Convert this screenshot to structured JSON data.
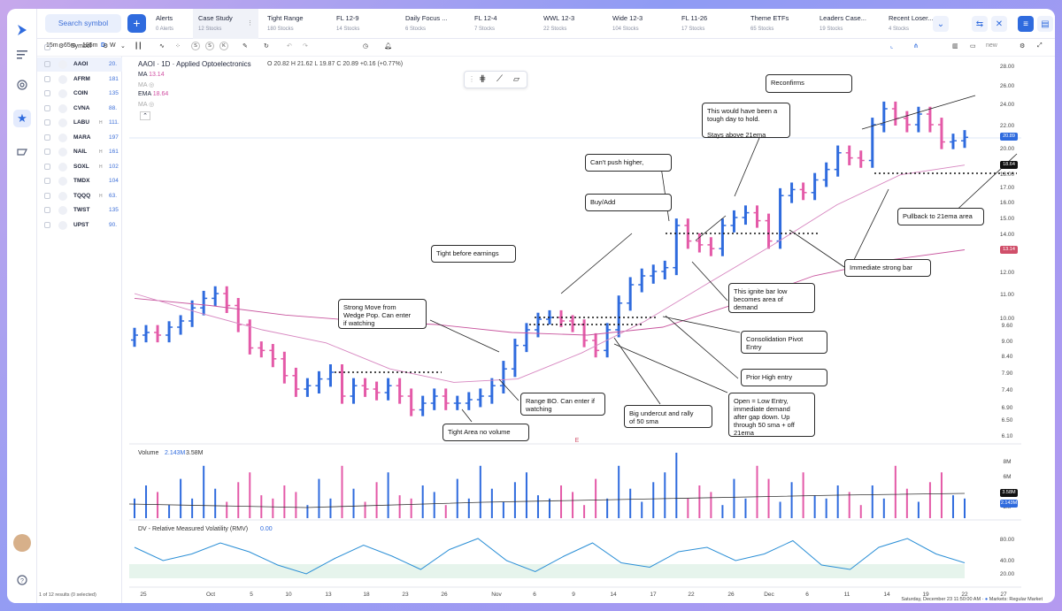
{
  "toolbar_top": {
    "search_label": "Search symbol",
    "add_label": "+",
    "tabs": [
      {
        "name": "Alerts",
        "sub": "0 Alerts"
      },
      {
        "name": "Case Study",
        "sub": "12 Stocks",
        "active": true
      },
      {
        "name": "Tight Range",
        "sub": "180 Stocks"
      },
      {
        "name": "FL 12-9",
        "sub": "14 Stocks"
      },
      {
        "name": "Daily Focus ...",
        "sub": "6 Stocks"
      },
      {
        "name": "FL 12-4",
        "sub": "7 Stocks"
      },
      {
        "name": "WWL 12-3",
        "sub": "22 Stocks"
      },
      {
        "name": "Wide 12-3",
        "sub": "104 Stocks"
      },
      {
        "name": "FL 11-26",
        "sub": "17 Stocks"
      },
      {
        "name": "Theme ETFs",
        "sub": "65 Stocks"
      },
      {
        "name": "Leaders Case...",
        "sub": "19 Stocks"
      },
      {
        "name": "Recent Loser...",
        "sub": "4 Stocks"
      }
    ]
  },
  "chart_toolbar": {
    "intervals": [
      "15m",
      "65m",
      "195m",
      "D",
      "W"
    ],
    "active_interval": "D",
    "compare": [
      "S",
      "S",
      "K"
    ],
    "layout_label": "new"
  },
  "watchlist": {
    "header": "Symbol",
    "rows": [
      {
        "sym": "AAOI",
        "flag": "",
        "px": "20.",
        "selected": true
      },
      {
        "sym": "AFRM",
        "flag": "",
        "px": "181"
      },
      {
        "sym": "COIN",
        "flag": "",
        "px": "135"
      },
      {
        "sym": "CVNA",
        "flag": "",
        "px": "88."
      },
      {
        "sym": "LABU",
        "flag": "H",
        "px": "111."
      },
      {
        "sym": "MARA",
        "flag": "",
        "px": "197"
      },
      {
        "sym": "NAIL",
        "flag": "H",
        "px": "161"
      },
      {
        "sym": "SOXL",
        "flag": "H",
        "px": "102"
      },
      {
        "sym": "TMDX",
        "flag": "",
        "px": "104"
      },
      {
        "sym": "TQQQ",
        "flag": "H",
        "px": "63."
      },
      {
        "sym": "TWST",
        "flag": "",
        "px": "135"
      },
      {
        "sym": "UPST",
        "flag": "",
        "px": "90."
      }
    ],
    "footer": "1 of 12 results (0 selected)"
  },
  "legend": {
    "title": "AAOI · 1D · Applied Optoelectronics",
    "ohlc": "O 20.82  H 21.62  L 19.87  C 20.89  +0.16 (+0.77%)",
    "ma_label": "MA",
    "ma_value": "13.14",
    "ma2_label": "MA",
    "ema_label": "EMA",
    "ema_value": "18.64",
    "ma3_label": "MA"
  },
  "annotations": [
    {
      "id": "reconfirms",
      "text": "Reconfirms"
    },
    {
      "id": "tough-day",
      "text": "This would have been a\ntough day to hold.\n\nStays above 21ema"
    },
    {
      "id": "cant-push",
      "text": "Can't push higher,"
    },
    {
      "id": "buy-add",
      "text": "Buy/Add"
    },
    {
      "id": "tight-earnings",
      "text": "Tight before earnings"
    },
    {
      "id": "strong-move",
      "text": "Strong Move from\nWedge Pop. Can enter\nif watching"
    },
    {
      "id": "range-bo",
      "text": "Range BO. Can enter if\nwatching"
    },
    {
      "id": "tight-area",
      "text": "Tight Area no volume"
    },
    {
      "id": "big-undercut",
      "text": "Big undercut and rally\nof 50 sma"
    },
    {
      "id": "open-low",
      "text": "Open = Low Entry,\nimmediate demand\nafter gap down. Up\nthrough 50 sma + off\n21ema"
    },
    {
      "id": "prior-high",
      "text": "Prior High entry"
    },
    {
      "id": "consolidation",
      "text": "Consolidation Pivot\nEntry"
    },
    {
      "id": "ignite-bar",
      "text": "This ignite bar low\nbecomes area of\ndemand"
    },
    {
      "id": "immediate-strong",
      "text": "Immediate strong bar"
    },
    {
      "id": "pullback",
      "text": "Pullback to 21ema area"
    }
  ],
  "price_axis": [
    "28.00",
    "26.00",
    "24.00",
    "22.00",
    "20.00",
    "18.00",
    "17.00",
    "16.00",
    "15.00",
    "14.00",
    "12.00",
    "11.00",
    "10.00",
    "9.60",
    "9.00",
    "8.40",
    "7.90",
    "7.40",
    "6.90",
    "6.50",
    "6.10"
  ],
  "price_tags": {
    "last": "20.89",
    "ema": "18.64",
    "ma": "13.14",
    "vol_a": "3.58M",
    "vol_b": "2.143M"
  },
  "volume": {
    "label": "Volume",
    "v1": "2.143M",
    "v2": "3.58M",
    "axis": [
      "8M",
      "6M",
      "4M",
      "2M"
    ]
  },
  "rmv": {
    "label": "DV - Relative Measured Volatility (RMV)",
    "value": "0.00",
    "axis": [
      "80.00",
      "40.00",
      "20.00"
    ]
  },
  "date_axis": [
    "25",
    "Oct",
    "5",
    "10",
    "13",
    "18",
    "23",
    "26",
    "Nov",
    "6",
    "9",
    "14",
    "17",
    "22",
    "26",
    "Dec",
    "6",
    "11",
    "14",
    "19",
    "22",
    "27"
  ],
  "earnings_marker": "E",
  "status": {
    "datetime": "Saturday, December 23 11:50:00 AM",
    "market": "Markets: Regular Market"
  },
  "chart_data": {
    "type": "ohlc",
    "title": "AAOI · 1D · Applied Optoelectronics",
    "series": [
      {
        "name": "AAOI",
        "ohlc_approx_closes": [
          9.2,
          9.3,
          9.2,
          9.5,
          9.8,
          10.4,
          10.8,
          11.0,
          10.5,
          9.6,
          8.7,
          8.6,
          8.3,
          7.8,
          7.4,
          7.5,
          7.7,
          7.9,
          7.2,
          7.5,
          7.4,
          7.3,
          7.5,
          7.2,
          6.8,
          7.0,
          7.2,
          7.0,
          7.0,
          7.1,
          7.2,
          7.5,
          8.0,
          8.8,
          9.4,
          9.9,
          10.0,
          9.8,
          9.6,
          9.0,
          8.6,
          9.4,
          10.6,
          11.4,
          11.8,
          12.0,
          12.2,
          14.5,
          13.6,
          13.4,
          13.2,
          14.5,
          15.0,
          15.3,
          14.8,
          13.6,
          16.4,
          16.8,
          16.6,
          17.5,
          18.3,
          19.6,
          19.2,
          19.0,
          22.0,
          23.5,
          22.6,
          22.0,
          23.0,
          22.0,
          20.5,
          20.6,
          20.9
        ]
      },
      {
        "name": "MA",
        "values_approx": [
          10.8,
          10.5,
          10.1,
          9.8,
          9.6,
          9.3,
          9.2,
          9.5,
          10.6,
          11.8,
          12.6,
          13.14
        ]
      },
      {
        "name": "EMA",
        "values_approx": [
          11.0,
          10.2,
          9.4,
          8.9,
          8.0,
          7.6,
          7.7,
          8.5,
          9.8,
          11.5,
          13.4,
          15.8,
          17.9,
          18.64
        ]
      }
    ],
    "volume_labels": [
      "2.143M",
      "3.58M"
    ],
    "rmv_axis": [
      0,
      20,
      40,
      80
    ]
  }
}
